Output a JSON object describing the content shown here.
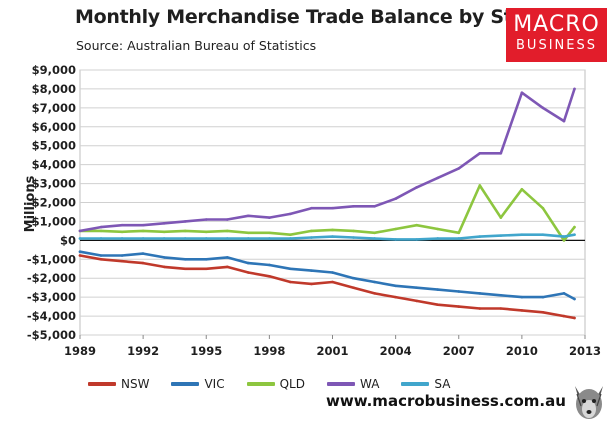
{
  "header": {
    "title": "Monthly Merchandise Trade Balance by State",
    "subtitle": "Source:  Australian Bureau of Statistics"
  },
  "logo": {
    "line1": "MACRO",
    "line2": "BUSINESS",
    "color": "#e21d2b"
  },
  "footer": {
    "website": "www.macrobusiness.com.au"
  },
  "chart_data": {
    "type": "line",
    "title": "Monthly Merchandise Trade Balance by State",
    "ylabel": "Millions",
    "xlabel": "",
    "xlim": [
      1989,
      2013
    ],
    "ylim": [
      -5000,
      9000
    ],
    "y_ticks": [
      9000,
      8000,
      7000,
      6000,
      5000,
      4000,
      3000,
      2000,
      1000,
      0,
      -1000,
      -2000,
      -3000,
      -4000,
      -5000
    ],
    "y_tick_labels": [
      "$9,000",
      "$8,000",
      "$7,000",
      "$6,000",
      "$5,000",
      "$4,000",
      "$3,000",
      "$2,000",
      "$1,000",
      "$0",
      "-$1,000",
      "-$2,000",
      "-$3,000",
      "-$4,000",
      "-$5,000"
    ],
    "x_ticks": [
      1989,
      1992,
      1995,
      1998,
      2001,
      2004,
      2007,
      2010,
      2013
    ],
    "x_tick_labels": [
      "1989",
      "1992",
      "1995",
      "1998",
      "2001",
      "2004",
      "2007",
      "2010",
      "2013"
    ],
    "grid": "horizontal",
    "legend": "bottom",
    "series": [
      {
        "name": "NSW",
        "color": "#c0392b",
        "x": [
          1989,
          1990,
          1991,
          1992,
          1993,
          1994,
          1995,
          1996,
          1997,
          1998,
          1999,
          2000,
          2001,
          2002,
          2003,
          2004,
          2005,
          2006,
          2007,
          2008,
          2009,
          2010,
          2011,
          2012,
          2012.5
        ],
        "values": [
          -800,
          -1000,
          -1100,
          -1200,
          -1400,
          -1500,
          -1500,
          -1400,
          -1700,
          -1900,
          -2200,
          -2300,
          -2200,
          -2500,
          -2800,
          -3000,
          -3200,
          -3400,
          -3500,
          -3600,
          -3600,
          -3700,
          -3800,
          -4000,
          -4100
        ]
      },
      {
        "name": "VIC",
        "color": "#2e75b6",
        "x": [
          1989,
          1990,
          1991,
          1992,
          1993,
          1994,
          1995,
          1996,
          1997,
          1998,
          1999,
          2000,
          2001,
          2002,
          2003,
          2004,
          2005,
          2006,
          2007,
          2008,
          2009,
          2010,
          2011,
          2012,
          2012.5
        ],
        "values": [
          -600,
          -800,
          -800,
          -700,
          -900,
          -1000,
          -1000,
          -900,
          -1200,
          -1300,
          -1500,
          -1600,
          -1700,
          -2000,
          -2200,
          -2400,
          -2500,
          -2600,
          -2700,
          -2800,
          -2900,
          -3000,
          -3000,
          -2800,
          -3100
        ]
      },
      {
        "name": "QLD",
        "color": "#8dc63f",
        "x": [
          1989,
          1990,
          1991,
          1992,
          1993,
          1994,
          1995,
          1996,
          1997,
          1998,
          1999,
          2000,
          2001,
          2002,
          2003,
          2004,
          2005,
          2006,
          2007,
          2008,
          2009,
          2010,
          2011,
          2012,
          2012.5
        ],
        "values": [
          500,
          500,
          450,
          500,
          450,
          500,
          450,
          500,
          400,
          400,
          300,
          500,
          550,
          500,
          400,
          600,
          800,
          600,
          400,
          2900,
          1200,
          2700,
          1700,
          0,
          700
        ]
      },
      {
        "name": "WA",
        "color": "#7e57b5",
        "x": [
          1989,
          1990,
          1991,
          1992,
          1993,
          1994,
          1995,
          1996,
          1997,
          1998,
          1999,
          2000,
          2001,
          2002,
          2003,
          2004,
          2005,
          2006,
          2007,
          2008,
          2009,
          2010,
          2011,
          2012,
          2012.5
        ],
        "values": [
          500,
          700,
          800,
          800,
          900,
          1000,
          1100,
          1100,
          1300,
          1200,
          1400,
          1700,
          1700,
          1800,
          1800,
          2200,
          2800,
          3300,
          3800,
          4600,
          4600,
          7800,
          7000,
          6300,
          8000
        ]
      },
      {
        "name": "SA",
        "color": "#41a6cc",
        "x": [
          1989,
          1990,
          1991,
          1992,
          1993,
          1994,
          1995,
          1996,
          1997,
          1998,
          1999,
          2000,
          2001,
          2002,
          2003,
          2004,
          2005,
          2006,
          2007,
          2008,
          2009,
          2010,
          2011,
          2012,
          2012.5
        ],
        "values": [
          100,
          100,
          100,
          100,
          100,
          100,
          100,
          100,
          100,
          100,
          100,
          150,
          200,
          150,
          100,
          50,
          50,
          100,
          100,
          200,
          250,
          300,
          300,
          200,
          300
        ]
      }
    ]
  }
}
